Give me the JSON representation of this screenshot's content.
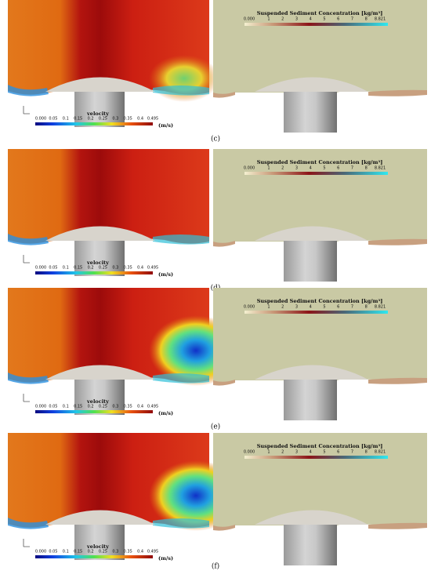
{
  "panels": [
    {
      "label": "(c)"
    },
    {
      "label": "(d)"
    },
    {
      "label": "(e)"
    },
    {
      "label": "(f)"
    }
  ],
  "velocity": {
    "title": "velocity",
    "unit": "(m/s)",
    "ticks": [
      "0.000",
      "0.05",
      "0.1",
      "0.15",
      "0.2",
      "0.25",
      "0.3",
      "0.35",
      "0.4",
      "0.495"
    ]
  },
  "sediment": {
    "title": "Suspended Sediment Concentration [kg/m³]",
    "ticks": [
      "0.000",
      "1",
      "2",
      "3",
      "4",
      "5",
      "6",
      "7",
      "8",
      "8.821"
    ]
  }
}
